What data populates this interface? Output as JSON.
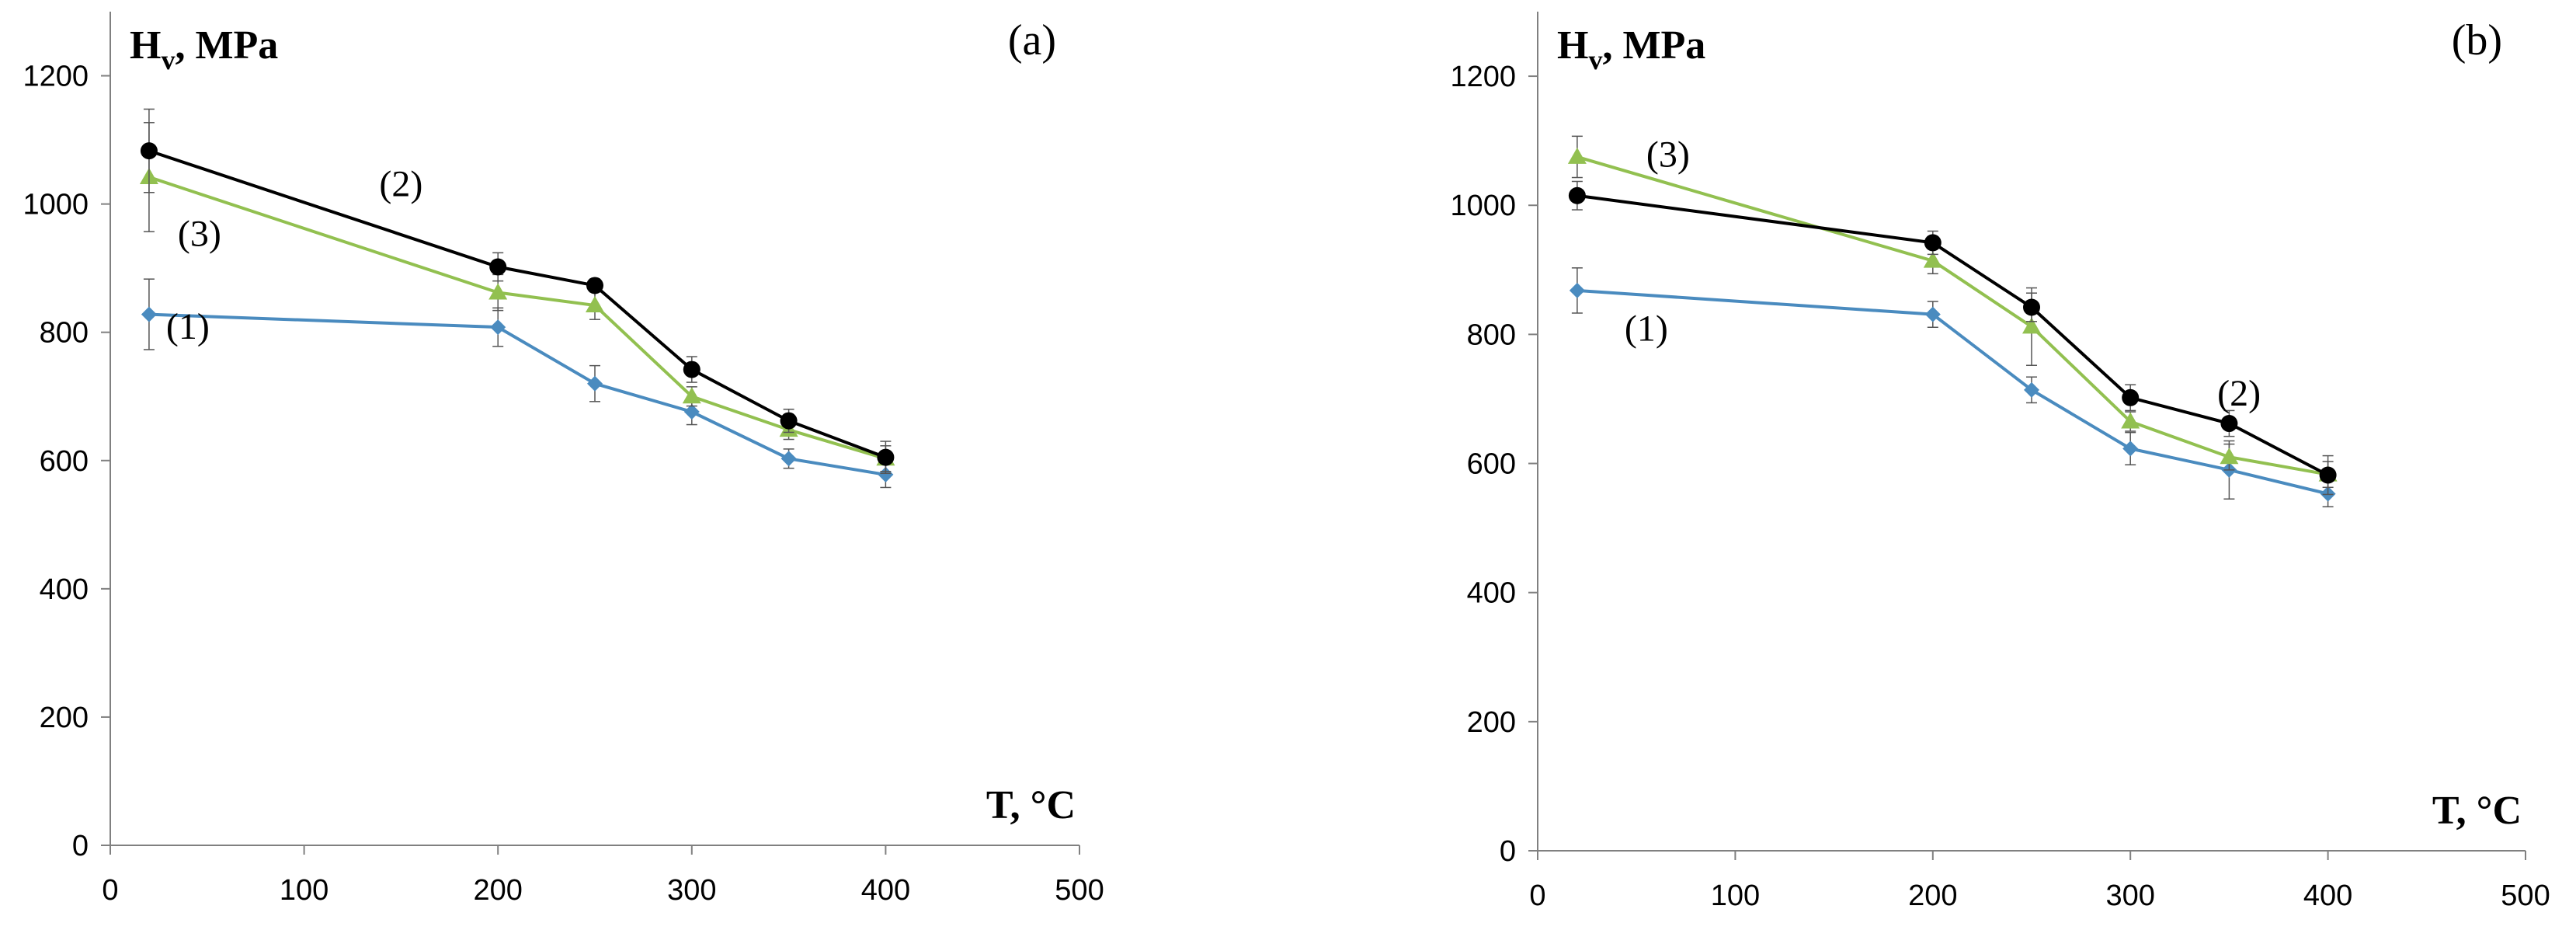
{
  "chart_data": [
    {
      "type": "line",
      "panel_label": "(a)",
      "ylabel_main": "H",
      "ylabel_sub": "v",
      "ylabel_unit": ", MPa",
      "xlabel": "T, °C",
      "xlim": [
        0,
        500
      ],
      "ylim": [
        0,
        1300
      ],
      "xticks": [
        0,
        100,
        200,
        300,
        400,
        500
      ],
      "yticks": [
        0,
        200,
        400,
        600,
        800,
        1000,
        1200
      ],
      "x": [
        20,
        200,
        250,
        300,
        350,
        400
      ],
      "series": [
        {
          "name": "(1)",
          "color": "#4a8bbf",
          "marker": "diamond",
          "values": [
            828,
            808,
            720,
            676,
            603,
            578
          ],
          "errors": [
            55,
            30,
            28,
            20,
            15,
            20
          ]
        },
        {
          "name": "(2)",
          "color": "#000000",
          "marker": "circle",
          "values": [
            1083,
            902,
            873,
            742,
            662,
            605
          ],
          "errors": [
            65,
            22,
            10,
            20,
            18,
            25
          ]
        },
        {
          "name": "(3)",
          "color": "#92c050",
          "marker": "triangle",
          "values": [
            1042,
            862,
            842,
            700,
            648,
            603
          ],
          "errors": [
            85,
            28,
            22,
            15,
            15,
            20
          ]
        }
      ],
      "series_labels": [
        {
          "text": "(1)",
          "x": 40,
          "y": 790
        },
        {
          "text": "(2)",
          "x": 150,
          "y": 1012
        },
        {
          "text": "(3)",
          "x": 46,
          "y": 935
        }
      ]
    },
    {
      "type": "line",
      "panel_label": "(b)",
      "ylabel_main": "H",
      "ylabel_sub": "v",
      "ylabel_unit": ", MPa",
      "xlabel": "T, °C",
      "xlim": [
        0,
        500
      ],
      "ylim": [
        0,
        1300
      ],
      "xticks": [
        0,
        100,
        200,
        300,
        400,
        500
      ],
      "yticks": [
        0,
        200,
        400,
        600,
        800,
        1000,
        1200
      ],
      "x": [
        20,
        200,
        250,
        300,
        350,
        400
      ],
      "series": [
        {
          "name": "(1)",
          "color": "#4a8bbf",
          "marker": "diamond",
          "values": [
            868,
            831,
            714,
            623,
            590,
            553
          ],
          "errors": [
            35,
            20,
            20,
            25,
            45,
            20
          ]
        },
        {
          "name": "(2)",
          "color": "#000000",
          "marker": "circle",
          "values": [
            1015,
            942,
            842,
            702,
            662,
            582
          ],
          "errors": [
            22,
            18,
            22,
            20,
            20,
            30
          ]
        },
        {
          "name": "(3)",
          "color": "#92c050",
          "marker": "triangle",
          "values": [
            1075,
            914,
            812,
            665,
            610,
            583
          ],
          "errors": [
            32,
            20,
            60,
            15,
            20,
            20
          ]
        }
      ],
      "series_labels": [
        {
          "text": "(1)",
          "x": 55,
          "y": 790
        },
        {
          "text": "(2)",
          "x": 355,
          "y": 690
        },
        {
          "text": "(3)",
          "x": 66,
          "y": 1060
        }
      ]
    }
  ]
}
